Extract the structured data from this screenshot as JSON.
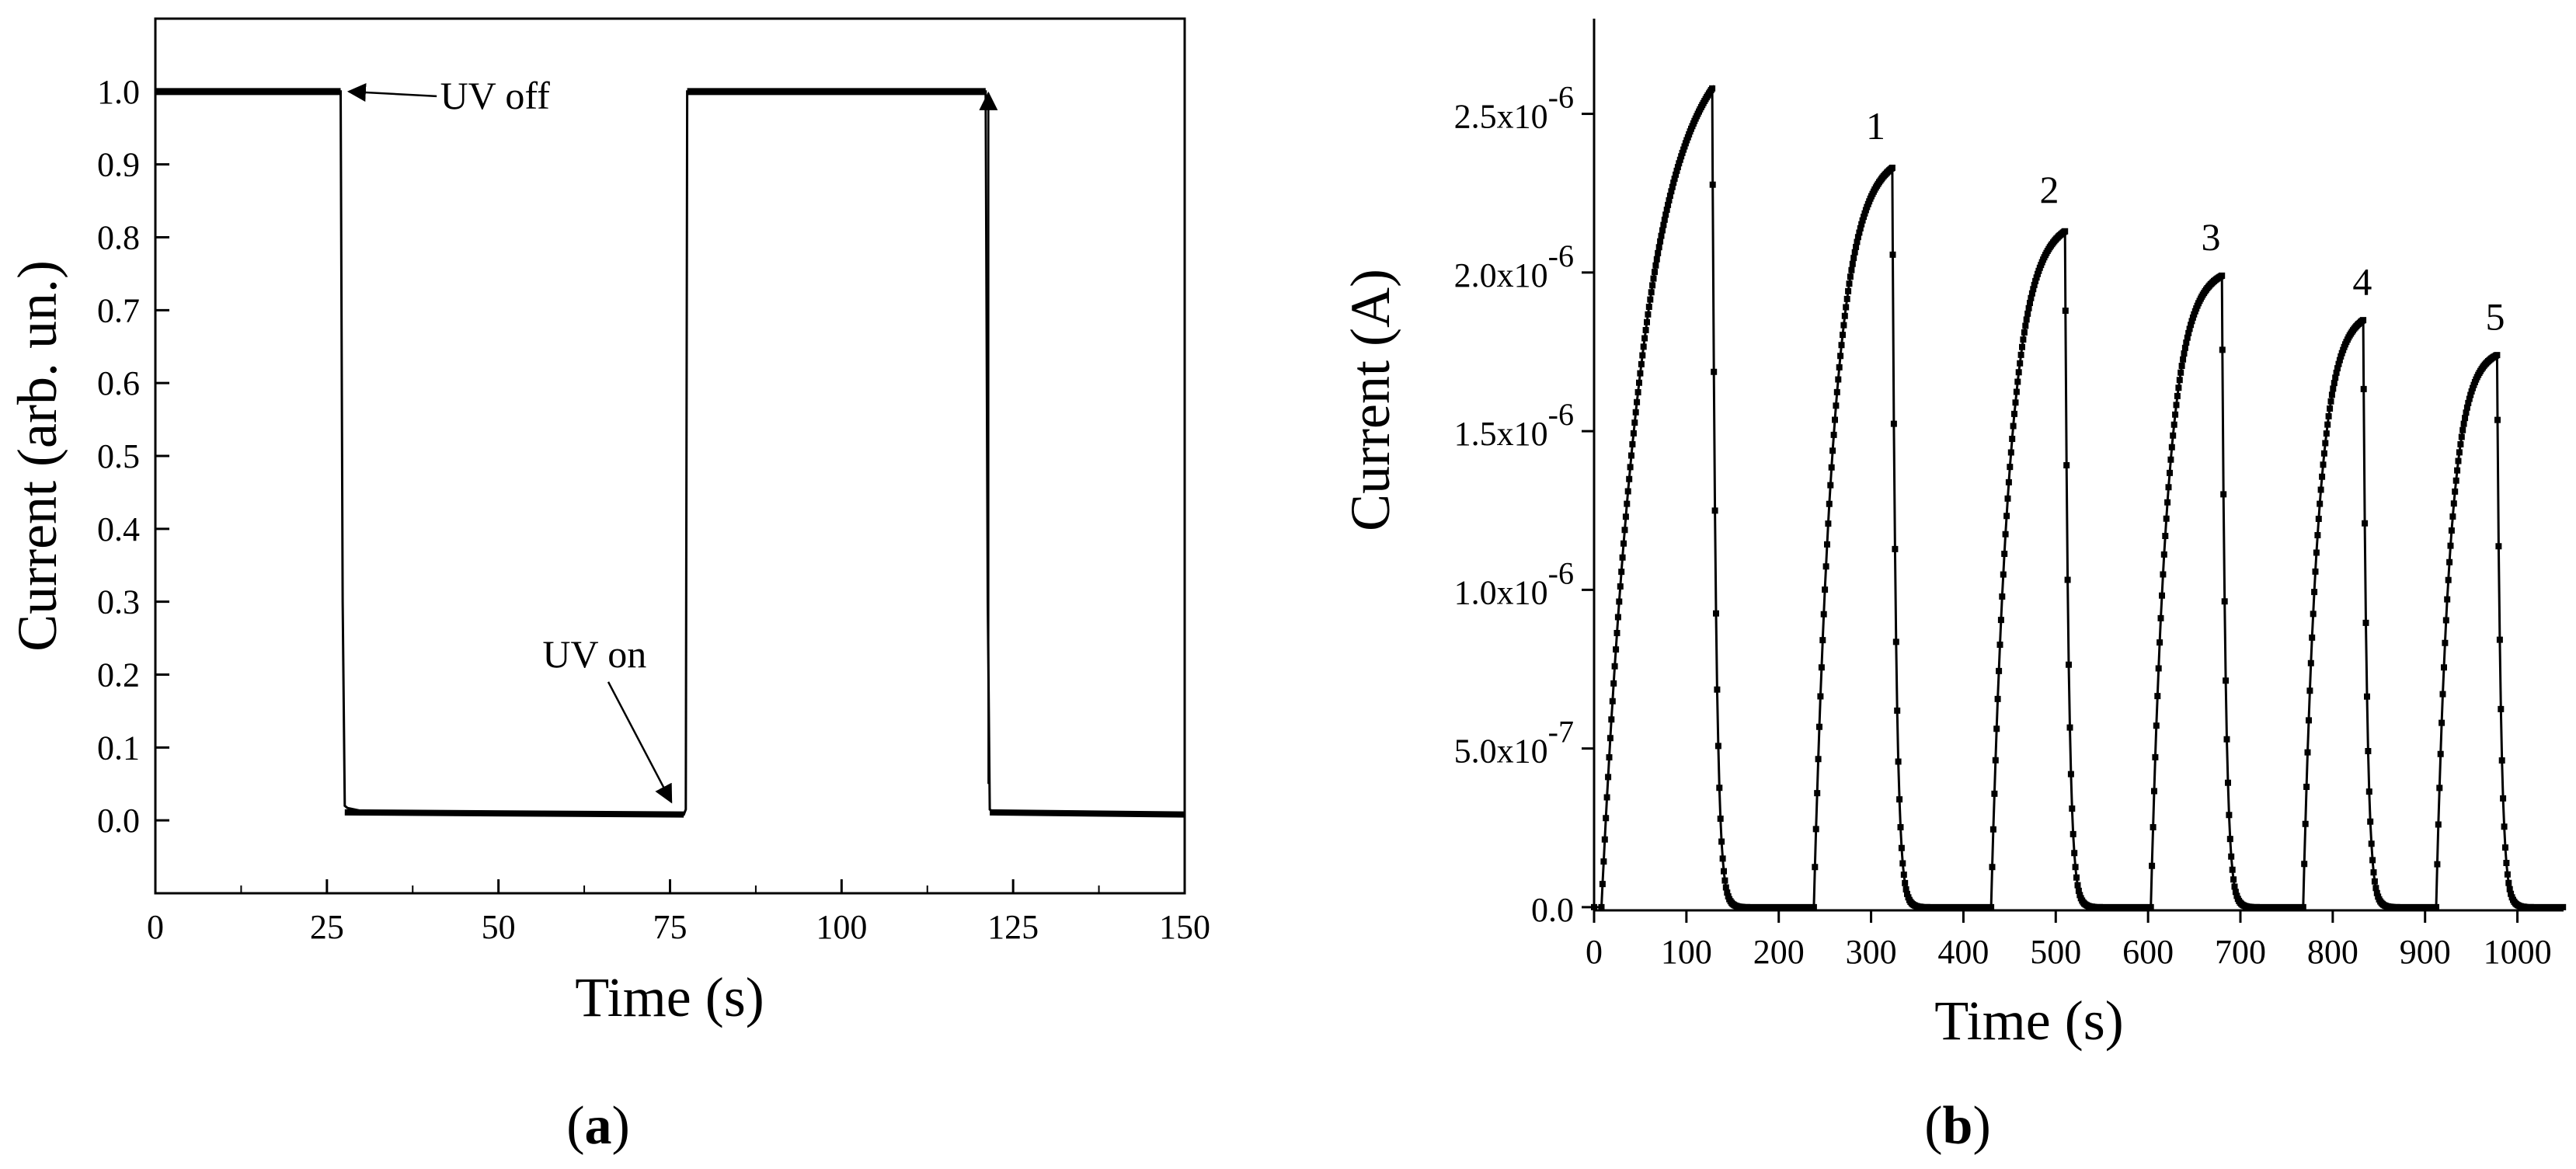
{
  "chart_data": [
    {
      "type": "line",
      "panel_label": "(a)",
      "xlabel": "Time (s)",
      "ylabel": "Current (arb. un.)",
      "xlim": [
        0,
        150
      ],
      "ylim": [
        -0.1,
        1.1
      ],
      "x_ticks": [
        0,
        25,
        50,
        75,
        100,
        125,
        150
      ],
      "x_tick_labels": [
        "0",
        "25",
        "50",
        "75",
        "100",
        "125",
        "150"
      ],
      "y_ticks": [
        0.0,
        0.1,
        0.2,
        0.3,
        0.4,
        0.5,
        0.6,
        0.7,
        0.8,
        0.9,
        1.0
      ],
      "y_tick_labels": [
        "0.0",
        "0.1",
        "0.2",
        "0.3",
        "0.4",
        "0.5",
        "0.6",
        "0.7",
        "0.8",
        "0.9",
        "1.0"
      ],
      "grid": false,
      "series": [
        {
          "x": [
            0,
            27,
            27.3,
            27.6,
            28,
            30,
            35,
            40,
            50,
            60,
            70,
            77,
            77.3,
            77.5,
            121,
            121.3,
            121.6,
            122,
            125,
            130,
            140,
            150
          ],
          "y": [
            1.0,
            1.0,
            0.3,
            0.02,
            0.017,
            0.013,
            0.011,
            0.01,
            0.009,
            0.008,
            0.008,
            0.008,
            0.015,
            1.0,
            1.0,
            0.3,
            0.015,
            0.012,
            0.009,
            0.008,
            0.008,
            0.007
          ]
        }
      ],
      "annotations": [
        {
          "text": "UV off",
          "x": 27.5,
          "y": 1.0
        },
        {
          "text": "UV on",
          "x": 74,
          "y": 0.04
        },
        {
          "text": "",
          "x": 121,
          "y": 1.0
        }
      ]
    },
    {
      "type": "line",
      "panel_label": "(b)",
      "xlabel": "Time (s)",
      "ylabel": "Current (A)",
      "xlim": [
        0,
        1050
      ],
      "ylim": [
        -1e-08,
        2.8e-06
      ],
      "x_ticks": [
        0,
        100,
        200,
        300,
        400,
        500,
        600,
        700,
        800,
        900,
        1000
      ],
      "x_tick_labels": [
        "0",
        "100",
        "200",
        "300",
        "400",
        "500",
        "600",
        "700",
        "800",
        "900",
        "1000"
      ],
      "y_ticks": [
        0,
        5e-07,
        1e-06,
        1.5e-06,
        2e-06,
        2.5e-06
      ],
      "y_tick_labels": [
        {
          "mantissa": "0.0",
          "exponent": ""
        },
        {
          "mantissa": "5.0x10",
          "exponent": "-7"
        },
        {
          "mantissa": "1.0x10",
          "exponent": "-6"
        },
        {
          "mantissa": "1.5x10",
          "exponent": "-6"
        },
        {
          "mantissa": "2.0x10",
          "exponent": "-6"
        },
        {
          "mantissa": "2.5x10",
          "exponent": "-6"
        }
      ],
      "grid": false,
      "cycles": [
        {
          "t_on": 8,
          "t_off": 128,
          "peak": 2.58e-06,
          "tau_rise": 45
        },
        {
          "t_on": 238,
          "t_off": 323,
          "peak": 2.33e-06,
          "tau_rise": 22
        },
        {
          "t_on": 430,
          "t_off": 510,
          "peak": 2.13e-06,
          "tau_rise": 20
        },
        {
          "t_on": 603,
          "t_off": 680,
          "peak": 1.99e-06,
          "tau_rise": 18
        },
        {
          "t_on": 768,
          "t_off": 833,
          "peak": 1.85e-06,
          "tau_rise": 16
        },
        {
          "t_on": 912,
          "t_off": 978,
          "peak": 1.74e-06,
          "tau_rise": 15
        }
      ],
      "decay_tau": 4,
      "peak_labels": [
        {
          "text": "1",
          "x": 305,
          "y": 2.42e-06
        },
        {
          "text": "2",
          "x": 493,
          "y": 2.22e-06
        },
        {
          "text": "3",
          "x": 668,
          "y": 2.07e-06
        },
        {
          "text": "4",
          "x": 832,
          "y": 1.93e-06
        },
        {
          "text": "5",
          "x": 976,
          "y": 1.82e-06
        }
      ]
    }
  ]
}
